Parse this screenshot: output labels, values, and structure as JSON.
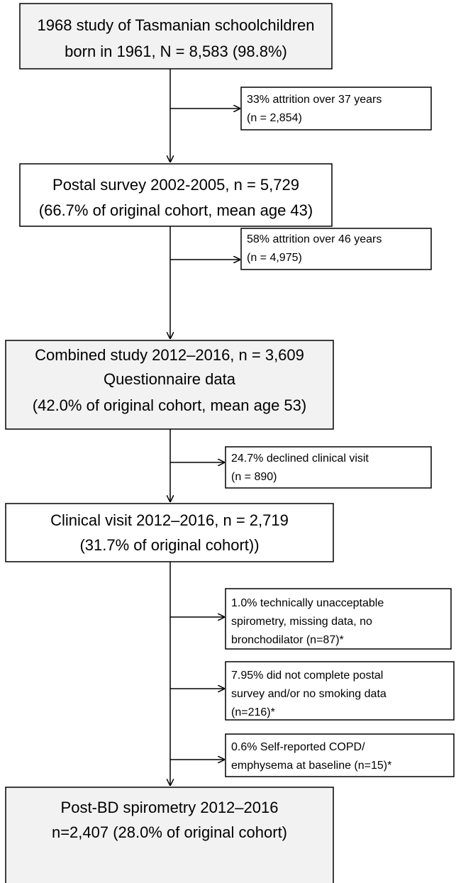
{
  "main_boxes": [
    {
      "lines": [
        "1968 study of Tasmanian schoolchildren",
        "born in 1961, N = 8,583 (98.8%)"
      ]
    },
    {
      "lines": [
        "Postal survey 2002-2005, n = 5,729",
        "(66.7% of original cohort, mean age 43)"
      ]
    },
    {
      "lines": [
        "Combined study 2012–2016, n = 3,609",
        "Questionnaire data",
        "(42.0% of original cohort, mean age 53)"
      ]
    },
    {
      "lines": [
        "Clinical visit 2012–2016, n = 2,719",
        "(31.7% of original cohort))"
      ]
    },
    {
      "lines": [
        "Post-BD spirometry 2012–2016",
        "n=2,407 (28.0% of original cohort)"
      ]
    }
  ],
  "side_boxes": [
    {
      "lines": [
        "33% attrition over 37 years",
        "(n = 2,854)"
      ]
    },
    {
      "lines": [
        "58% attrition over 46 years",
        "(n = 4,975)"
      ]
    },
    {
      "lines": [
        "24.7% declined clinical visit",
        "(n = 890)"
      ]
    },
    {
      "lines": [
        "1.0% technically unacceptable",
        "spirometry, missing data, no",
        "bronchodilator (n=87)*"
      ]
    },
    {
      "lines": [
        "7.95% did not complete postal",
        "survey and/or no smoking data",
        "(n=216)*"
      ]
    },
    {
      "lines": [
        "0.6% Self-reported COPD/",
        "emphysema at baseline (n=15)*"
      ]
    }
  ]
}
